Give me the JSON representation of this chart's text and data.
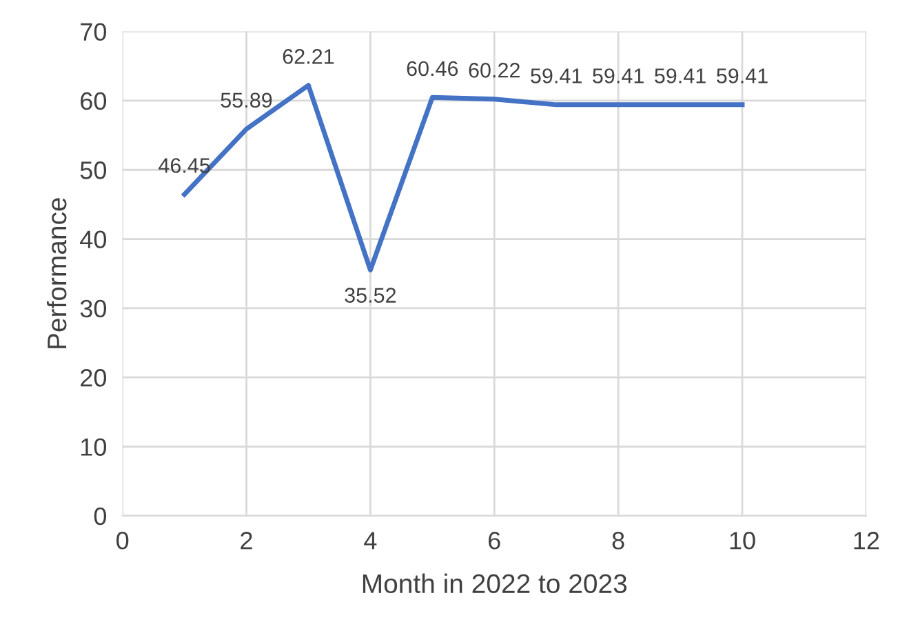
{
  "chart_data": {
    "type": "line",
    "xlabel": "Month in 2022 to 2023",
    "ylabel": "Performance",
    "x": [
      1,
      2,
      3,
      4,
      5,
      6,
      7,
      8,
      9,
      10
    ],
    "series": [
      {
        "color": "#4472c4",
        "values": [
          46.45,
          55.89,
          62.21,
          35.52,
          60.46,
          60.22,
          59.41,
          59.41,
          59.41,
          59.41
        ]
      }
    ],
    "xlim": [
      0,
      12
    ],
    "xticks": [
      0,
      2,
      4,
      6,
      8,
      10,
      12
    ],
    "ylim": [
      0,
      70
    ],
    "yticks": [
      0,
      10,
      20,
      30,
      40,
      50,
      60,
      70
    ],
    "grid": true,
    "data_labels": true,
    "marker": "none",
    "line_style": "solid"
  }
}
